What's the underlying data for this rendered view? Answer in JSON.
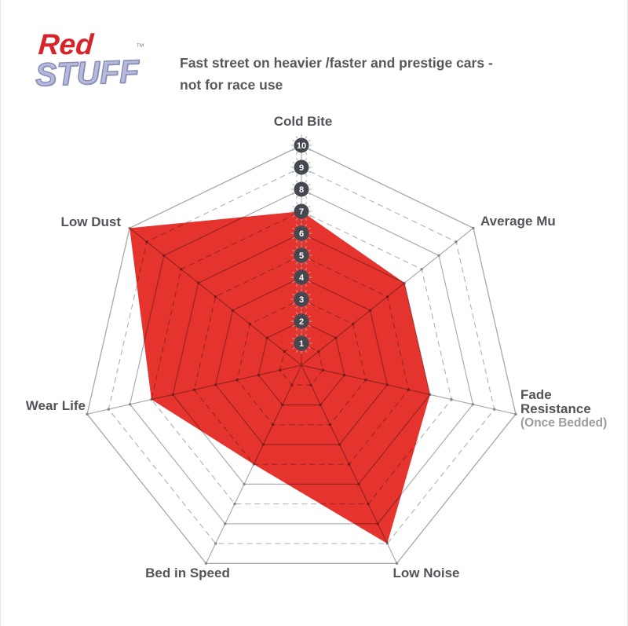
{
  "brand": {
    "red": "Red",
    "stuff": "stuff",
    "trademark": "™"
  },
  "tagline": {
    "line1": "Fast street on heavier /faster and prestige cars -",
    "line2": "not for race use"
  },
  "chart_data": {
    "type": "radar",
    "categories": [
      "Cold Bite",
      "Average Mu",
      "Fade Resistance (Once Bedded)",
      "Low Noise",
      "Bed in Speed",
      "Wear Life",
      "Low Dust"
    ],
    "values": [
      7,
      6,
      6,
      9,
      5,
      7,
      10
    ],
    "scale_min": 1,
    "scale_max": 10,
    "tick_labels": [
      "10",
      "9",
      "8",
      "7",
      "6",
      "5",
      "4",
      "3",
      "2",
      "1"
    ],
    "grid": "10 heptagonal rings, solid at even values, dashed at odd values",
    "legend_position": "none",
    "fill_color": "#e5332e",
    "grid_color": "#a9adb1",
    "badge_color": "#45494f",
    "label_color": "#515459"
  },
  "axis_labels": {
    "cold_bite": "Cold Bite",
    "average_mu": "Average Mu",
    "fade_line1": "Fade",
    "fade_line2": "Resistance",
    "fade_line3": "(Once Bedded)",
    "low_noise": "Low Noise",
    "bed_in_speed": "Bed in Speed",
    "wear_life": "Wear Life",
    "low_dust": "Low Dust"
  }
}
